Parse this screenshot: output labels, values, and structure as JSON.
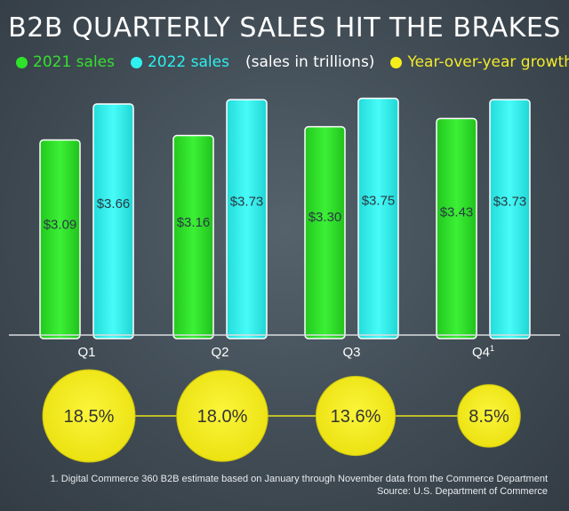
{
  "title": "B2B QUARTERLY SALES HIT THE BRAKES",
  "legend": {
    "series_2021": "2021 sales",
    "series_2022": "2022 sales",
    "unit_note": "(sales in trillions)",
    "growth": "Year-over-year growth"
  },
  "colors": {
    "series_2021": "#2fe32a",
    "series_2022": "#2ff2f0",
    "growth": "#f5ee1c"
  },
  "chart_data": {
    "type": "bar",
    "categories": [
      "Q1",
      "Q2",
      "Q3",
      "Q4"
    ],
    "category_superscripts": [
      "",
      "",
      "",
      "1"
    ],
    "series": [
      {
        "name": "2021 sales",
        "values": [
          3.09,
          3.16,
          3.3,
          3.43
        ],
        "labels": [
          "$3.09",
          "$3.16",
          "$3.30",
          "$3.43"
        ]
      },
      {
        "name": "2022 sales",
        "values": [
          3.66,
          3.73,
          3.75,
          3.73
        ],
        "labels": [
          "$3.66",
          "$3.73",
          "$3.75",
          "$3.73"
        ]
      }
    ],
    "growth": {
      "name": "Year-over-year growth",
      "values": [
        18.5,
        18.0,
        13.6,
        8.5
      ],
      "labels": [
        "18.5%",
        "18.0%",
        "13.6%",
        "8.5%"
      ]
    },
    "unit": "trillions",
    "ylim": [
      0,
      3.9
    ]
  },
  "footnote": {
    "line1": "1. Digital Commerce 360 B2B estimate based on January through November data from the Commerce Department",
    "line2": "Source: U.S. Department of Commerce"
  }
}
